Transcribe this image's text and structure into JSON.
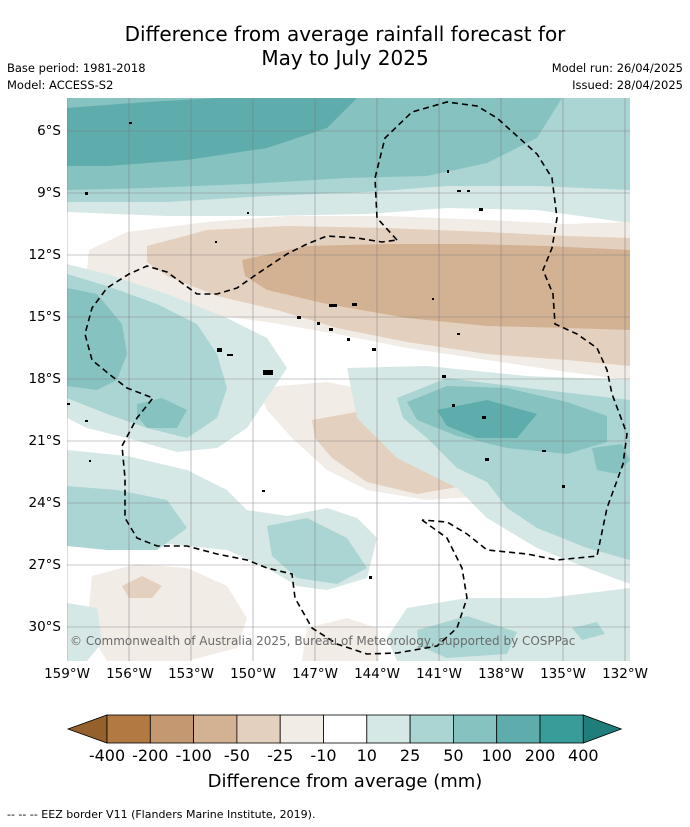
{
  "title_line1": "Difference from average rainfall forecast for",
  "title_line2": "May to July 2025",
  "base_period": "Base period: 1981-2018",
  "model": "Model: ACCESS-S2",
  "model_run": "Model run: 26/04/2025",
  "issued": "Issued: 28/04/2025",
  "copyright": "© Commonwealth of Australia 2025, Bureau of Meteorology, supported by COSPPac",
  "y_ticks": [
    "6°S",
    "9°S",
    "12°S",
    "15°S",
    "18°S",
    "21°S",
    "24°S",
    "27°S",
    "30°S"
  ],
  "x_ticks": [
    "159°W",
    "156°W",
    "153°W",
    "150°W",
    "147°W",
    "144°W",
    "141°W",
    "138°W",
    "135°W",
    "132°W"
  ],
  "colorbar": {
    "title": "Difference from average (mm)",
    "ticks": [
      "-400",
      "-200",
      "-100",
      "-50",
      "-25",
      "-10",
      "10",
      "25",
      "50",
      "100",
      "200",
      "400"
    ],
    "colors": [
      "#96602c",
      "#b27a42",
      "#c49870",
      "#d3b293",
      "#e4d0be",
      "#f2ece6",
      "#ffffff",
      "#d6e8e6",
      "#abd5d3",
      "#86c2c0",
      "#5eacac",
      "#389c98",
      "#1f7e7a"
    ]
  },
  "legend_note": "--  --  -- EEZ border V11 (Flanders Marine Institute, 2019)."
}
